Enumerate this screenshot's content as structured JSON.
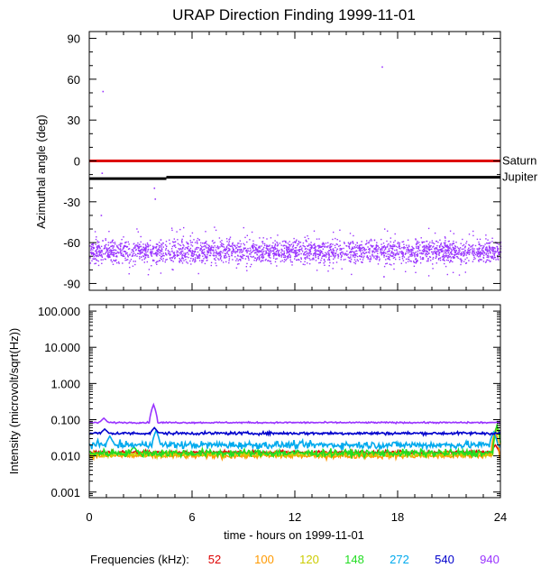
{
  "chart_data": [
    {
      "type": "scatter",
      "title": "URAP Direction Finding  1999-11-01",
      "xlabel": "",
      "ylabel": "Azimuthal angle (deg)",
      "xlim": [
        0,
        24
      ],
      "ylim": [
        -95,
        95
      ],
      "yticks": [
        90,
        60,
        30,
        0,
        -30,
        -60,
        -90
      ],
      "yticklabels": [
        "90",
        "60",
        "30",
        "0",
        "-30",
        "-60",
        "-90"
      ],
      "reference_lines": [
        {
          "name": "Saturn",
          "color": "#dd0000",
          "segments": [
            {
              "x": [
                0,
                24
              ],
              "y": [
                0,
                0
              ]
            }
          ]
        },
        {
          "name": "Jupiter",
          "color": "#000000",
          "segments": [
            {
              "x": [
                0,
                4.5
              ],
              "y": [
                -13,
                -13
              ]
            },
            {
              "x": [
                4.5,
                24
              ],
              "y": [
                -12,
                -12
              ]
            }
          ]
        }
      ],
      "series": [
        {
          "color": "#9933ff",
          "band_center": -66,
          "band_spread": 7,
          "band_x": [
            0,
            24
          ],
          "outliers": [
            {
              "x": 0.8,
              "y": 51
            },
            {
              "x": 17.1,
              "y": 69
            },
            {
              "x": 3.8,
              "y": -20
            },
            {
              "x": 3.85,
              "y": -28
            },
            {
              "x": 0.7,
              "y": -40
            },
            {
              "x": 0.75,
              "y": -9
            },
            {
              "x": 17.2,
              "y": -85
            }
          ]
        }
      ]
    },
    {
      "type": "line",
      "title": "",
      "xlabel": "time - hours on 1999-11-01",
      "ylabel": "Intensity (microvolt/sqrt(Hz))",
      "xlim": [
        0,
        24
      ],
      "xticks": [
        0,
        6,
        12,
        18,
        24
      ],
      "xticklabels": [
        "0",
        "6",
        "12",
        "18",
        "24"
      ],
      "yscale": "log",
      "ylim": [
        0.0007,
        150
      ],
      "yticks": [
        100,
        10,
        1,
        0.1,
        0.01,
        0.001
      ],
      "yticklabels": [
        "100.000",
        "10.000",
        "1.000",
        "0.100",
        "0.010",
        "0.001"
      ],
      "series": [
        {
          "name": "52",
          "color": "#dd0000",
          "level": 0.0125,
          "noise": 0.05,
          "spikes": [
            {
              "x": 23.7,
              "y": 0.02
            }
          ]
        },
        {
          "name": "100",
          "color": "#ff9900",
          "level": 0.01,
          "noise": 0.07,
          "spikes": [
            {
              "x": 23.7,
              "y": 0.05
            }
          ]
        },
        {
          "name": "120",
          "color": "#cccc00",
          "level": 0.011,
          "noise": 0.07,
          "spikes": [
            {
              "x": 23.8,
              "y": 0.06
            }
          ]
        },
        {
          "name": "148",
          "color": "#22dd22",
          "level": 0.012,
          "noise": 0.1,
          "spikes": [
            {
              "x": 2.6,
              "y": 0.018
            },
            {
              "x": 23.8,
              "y": 0.07
            }
          ]
        },
        {
          "name": "272",
          "color": "#00aaee",
          "level": 0.02,
          "noise": 0.1,
          "spikes": [
            {
              "x": 1.2,
              "y": 0.035
            },
            {
              "x": 3.9,
              "y": 0.05
            },
            {
              "x": 23.6,
              "y": 0.045
            }
          ]
        },
        {
          "name": "540",
          "color": "#0000cc",
          "level": 0.042,
          "noise": 0.04,
          "spikes": [
            {
              "x": 0.9,
              "y": 0.055
            },
            {
              "x": 3.8,
              "y": 0.06
            }
          ]
        },
        {
          "name": "940",
          "color": "#9933ff",
          "level": 0.083,
          "noise": 0.02,
          "spikes": [
            {
              "x": 0.85,
              "y": 0.11
            },
            {
              "x": 3.75,
              "y": 0.26
            }
          ]
        }
      ]
    }
  ],
  "legend": {
    "label": "Frequencies (kHz):",
    "items": [
      {
        "text": "52",
        "color": "#dd0000"
      },
      {
        "text": "100",
        "color": "#ff9900"
      },
      {
        "text": "120",
        "color": "#cccc00"
      },
      {
        "text": "148",
        "color": "#22dd22"
      },
      {
        "text": "272",
        "color": "#00aaee"
      },
      {
        "text": "540",
        "color": "#0000cc"
      },
      {
        "text": "940",
        "color": "#9933ff"
      }
    ]
  }
}
